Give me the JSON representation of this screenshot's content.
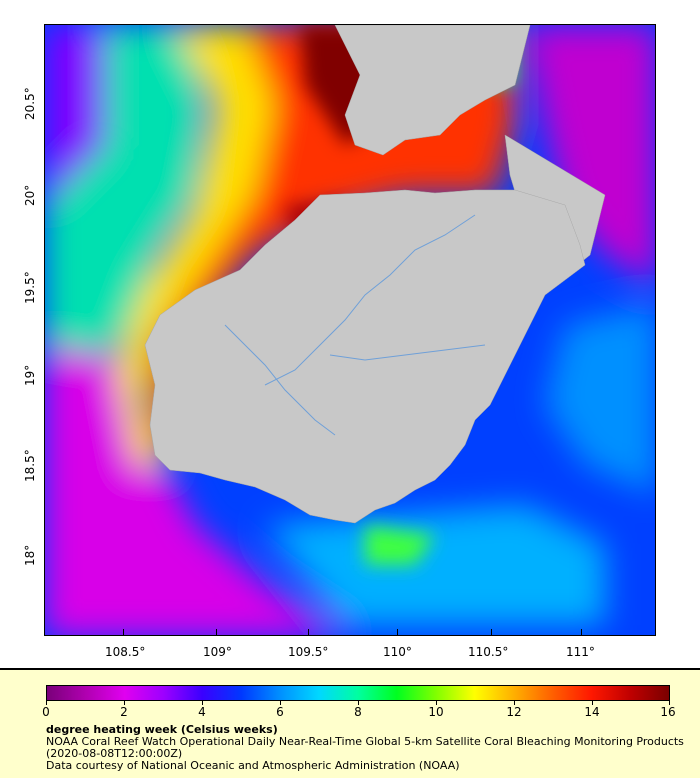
{
  "map": {
    "x_ticks": [
      "108.5°",
      "109°",
      "109.5°",
      "110°",
      "110.5°",
      "111°"
    ],
    "y_ticks": [
      "20.5°",
      "20°",
      "19.5°",
      "19°",
      "18.5°",
      "18°"
    ],
    "colors": {
      "land": "#c8c8c8",
      "river": "#6fa0d8",
      "scale": [
        "#7a007a",
        "#b000b0",
        "#e000f0",
        "#9d00ff",
        "#3a00ff",
        "#0038ff",
        "#0090ff",
        "#00d8ff",
        "#00ffa0",
        "#00ff20",
        "#80ff00",
        "#ffff00",
        "#ffb000",
        "#ff6000",
        "#ff1800",
        "#c00000",
        "#7a0000"
      ]
    }
  },
  "legend": {
    "ticks": [
      "0",
      "2",
      "4",
      "6",
      "8",
      "10",
      "12",
      "14",
      "16"
    ],
    "title": "degree heating week (Celsius weeks)",
    "line1": "NOAA Coral Reef Watch Operational Daily Near-Real-Time Global 5-km Satellite Coral Bleaching Monitoring Products",
    "line2": "(2020-08-08T12:00:00Z)",
    "line3": "Data courtesy of National Oceanic and Atmospheric Administration (NOAA)"
  }
}
